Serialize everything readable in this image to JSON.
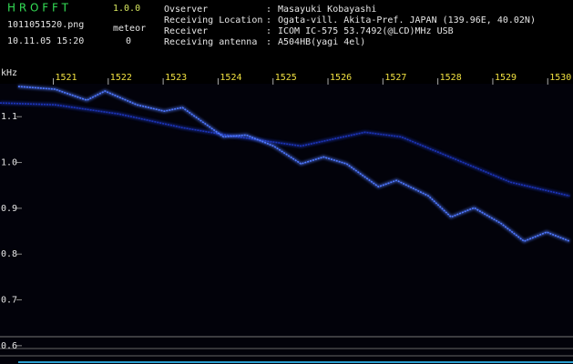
{
  "header": {
    "app_name": "H R O F F T",
    "version": "1.0.0",
    "filename": "1011051520.png",
    "meteor_label": "meteor",
    "datetime": "10.11.05 15:20",
    "meteor_count": "0"
  },
  "info": {
    "separator": ":",
    "rows": [
      {
        "label": "Ovserver",
        "value": "Masayuki Kobayashi"
      },
      {
        "label": "Receiving Location",
        "value": "Ogata-vill. Akita-Pref. JAPAN (139.96E, 40.02N)"
      },
      {
        "label": "Receiver",
        "value": "ICOM IC-575 53.7492(@LCD)MHz USB"
      },
      {
        "label": "Receiving antenna",
        "value": "A504HB(yagi 4el)"
      }
    ]
  },
  "chart_data": {
    "type": "spectrogram",
    "y_label": "kHz",
    "xlim": [
      1520.03,
      1530.46
    ],
    "xticks": [
      1521,
      1522,
      1523,
      1524,
      1525,
      1526,
      1527,
      1528,
      1529,
      1530
    ],
    "ylim": [
      0.56,
      1.172
    ],
    "yticks": [
      0.6,
      0.7,
      0.8,
      0.9,
      {
        "value": 1,
        "label": "1.0"
      },
      1.1
    ],
    "series": [
      {
        "color": "#1c34b8",
        "x": [
          1520.03,
          1521.03,
          1522.19,
          1523.35,
          1524.35,
          1525.51,
          1526.67,
          1527.33,
          1528.32,
          1529.32,
          1530.4
        ],
        "values": [
          1.13,
          1.126,
          1.106,
          1.076,
          1.056,
          1.036,
          1.066,
          1.056,
          1.007,
          0.957,
          0.927
        ]
      },
      {
        "color": "#4f78ff",
        "x": [
          1520.36,
          1521.03,
          1521.61,
          1521.94,
          1522.52,
          1523.02,
          1523.35,
          1524.1,
          1524.51,
          1525.01,
          1525.51,
          1525.92,
          1526.34,
          1526.92,
          1527.25,
          1527.83,
          1528.24,
          1528.66,
          1529.15,
          1529.57,
          1529.98,
          1530.4
        ],
        "values": [
          1.166,
          1.16,
          1.136,
          1.156,
          1.126,
          1.112,
          1.12,
          1.056,
          1.06,
          1.036,
          0.997,
          1.012,
          0.997,
          0.947,
          0.961,
          0.927,
          0.881,
          0.901,
          0.867,
          0.828,
          0.848,
          0.828
        ]
      }
    ]
  }
}
